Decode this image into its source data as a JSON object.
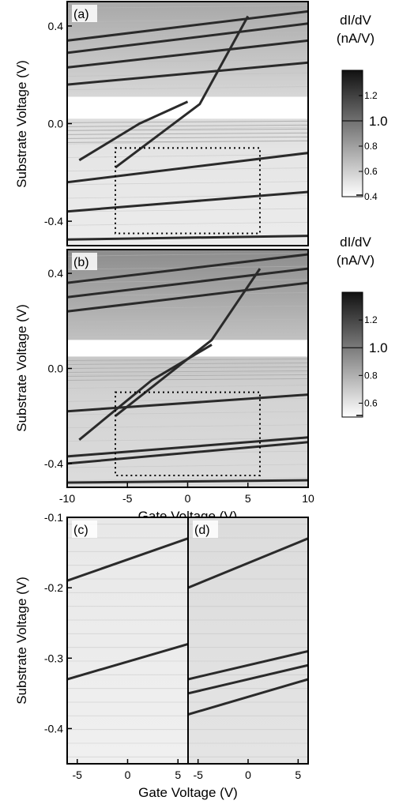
{
  "chart_data": [
    {
      "panel": "(a)",
      "type": "heatmap",
      "xlim": [
        -10,
        10
      ],
      "ylim": [
        -0.5,
        0.5
      ],
      "yticks": [
        "-0.4",
        "0.0",
        "0.4"
      ],
      "ylabel": "Substrate Voltage (V)",
      "ytick_values": [
        -0.4,
        0.0,
        0.4
      ],
      "dotted_box": {
        "x": [
          -6,
          6
        ],
        "y": [
          -0.45,
          -0.1
        ]
      },
      "lines": [
        {
          "x": [
            -10,
            10
          ],
          "y": [
            -0.475,
            -0.46
          ]
        },
        {
          "x": [
            -10,
            10
          ],
          "y": [
            -0.36,
            -0.28
          ]
        },
        {
          "x": [
            -10,
            10
          ],
          "y": [
            -0.24,
            -0.12
          ]
        },
        {
          "x": [
            -10,
            10
          ],
          "y": [
            0.16,
            0.25
          ]
        },
        {
          "x": [
            -10,
            10
          ],
          "y": [
            0.23,
            0.34
          ]
        },
        {
          "x": [
            -10,
            10
          ],
          "y": [
            0.29,
            0.41
          ]
        },
        {
          "x": [
            -10,
            10
          ],
          "y": [
            0.34,
            0.46
          ]
        },
        {
          "x": [
            -6,
            1,
            5
          ],
          "y": [
            -0.18,
            0.08,
            0.44
          ]
        },
        {
          "x": [
            -9,
            -4,
            0
          ],
          "y": [
            -0.15,
            0.0,
            0.09
          ]
        }
      ],
      "white_band": [
        0.02,
        0.11
      ]
    },
    {
      "panel": "(b)",
      "type": "heatmap",
      "xlim": [
        -10,
        10
      ],
      "ylim": [
        -0.5,
        0.5
      ],
      "xticks": [
        "-10",
        "-5",
        "0",
        "5",
        "10"
      ],
      "xtick_values": [
        -10,
        -5,
        0,
        5,
        10
      ],
      "yticks": [
        "-0.4",
        "0.0",
        "0.4"
      ],
      "ytick_values": [
        -0.4,
        0.0,
        0.4
      ],
      "xlabel": "Gate Voltage (V)",
      "ylabel": "Substrate Voltage (V)",
      "dotted_box": {
        "x": [
          -6,
          6
        ],
        "y": [
          -0.45,
          -0.1
        ]
      },
      "lines": [
        {
          "x": [
            -10,
            10
          ],
          "y": [
            -0.48,
            -0.47
          ]
        },
        {
          "x": [
            -10,
            10
          ],
          "y": [
            -0.4,
            -0.31
          ]
        },
        {
          "x": [
            -10,
            10
          ],
          "y": [
            -0.37,
            -0.29
          ]
        },
        {
          "x": [
            -10,
            10
          ],
          "y": [
            -0.18,
            -0.11
          ]
        },
        {
          "x": [
            -10,
            10
          ],
          "y": [
            0.24,
            0.36
          ]
        },
        {
          "x": [
            -10,
            10
          ],
          "y": [
            0.3,
            0.42
          ]
        },
        {
          "x": [
            -10,
            10
          ],
          "y": [
            0.36,
            0.48
          ]
        },
        {
          "x": [
            -6,
            2,
            6
          ],
          "y": [
            -0.2,
            0.12,
            0.42
          ]
        },
        {
          "x": [
            -9,
            -3,
            2
          ],
          "y": [
            -0.3,
            -0.05,
            0.1
          ]
        }
      ],
      "white_band": [
        0.05,
        0.12
      ]
    },
    {
      "panel": "(c)",
      "type": "heatmap",
      "xlim": [
        -6,
        6
      ],
      "ylim": [
        -0.45,
        -0.1
      ],
      "xticks": [
        "-5",
        "0",
        "5"
      ],
      "xtick_values": [
        -5,
        0,
        5
      ],
      "yticks": [
        "-0.1",
        "-0.2",
        "-0.3",
        "-0.4"
      ],
      "ytick_values": [
        -0.1,
        -0.2,
        -0.3,
        -0.4
      ],
      "ylabel": "Substrate Voltage (V)",
      "lines": [
        {
          "x": [
            -6,
            6
          ],
          "y": [
            -0.19,
            -0.13
          ]
        },
        {
          "x": [
            -6,
            6
          ],
          "y": [
            -0.33,
            -0.28
          ]
        }
      ]
    },
    {
      "panel": "(d)",
      "type": "heatmap",
      "xlim": [
        -6,
        6
      ],
      "ylim": [
        -0.45,
        -0.1
      ],
      "xticks": [
        "-5",
        "0",
        "5"
      ],
      "xtick_values": [
        -5,
        0,
        5
      ],
      "xlabel": "Gate Voltage (V)",
      "lines": [
        {
          "x": [
            -6,
            6
          ],
          "y": [
            -0.2,
            -0.13
          ]
        },
        {
          "x": [
            -6,
            6
          ],
          "y": [
            -0.33,
            -0.29
          ]
        },
        {
          "x": [
            -6,
            6
          ],
          "y": [
            -0.35,
            -0.31
          ]
        },
        {
          "x": [
            -6,
            6
          ],
          "y": [
            -0.38,
            -0.33
          ]
        }
      ]
    }
  ],
  "colorbars": [
    {
      "title1": "dI/dV",
      "title2": "(nA/V)",
      "ticks": [
        "1.2",
        "0.8",
        "0.6",
        "0.4"
      ],
      "tick_values": [
        1.2,
        0.8,
        0.6,
        0.4
      ],
      "mid_label": "1.0",
      "range": [
        0.4,
        1.4
      ]
    },
    {
      "title1": "dI/dV",
      "title2": "(nA/V)",
      "ticks": [
        "1.2",
        "0.8",
        "0.6"
      ],
      "tick_values": [
        1.2,
        0.8,
        0.6
      ],
      "mid_label": "1.0",
      "range": [
        0.5,
        1.4
      ]
    }
  ],
  "colors": {
    "map_low": "#ffffff",
    "map_high": "#000000",
    "box": "#000000"
  }
}
